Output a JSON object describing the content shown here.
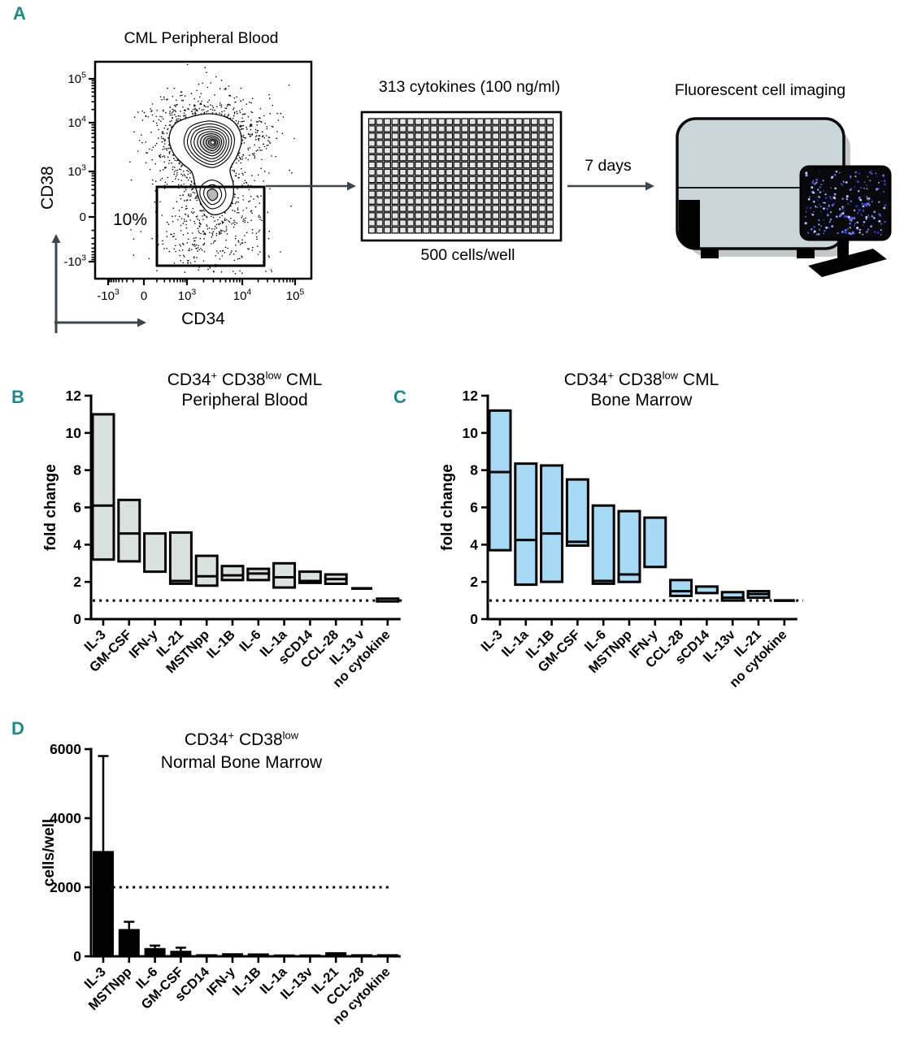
{
  "accent_color": "#1A8A8C",
  "panel_labels": {
    "a": "A",
    "b": "B",
    "c": "C",
    "d": "D"
  },
  "panel_a": {
    "flow_plot": {
      "title": "CML Peripheral Blood",
      "x_axis_label": "CD34",
      "y_axis_label": "CD38",
      "x_ticks": [
        "-10^3",
        "0",
        "10^3",
        "10^4",
        "10^5"
      ],
      "y_ticks": [
        "10^5",
        "10^4",
        "10^3",
        "0",
        "-10^3"
      ],
      "gate_percentage": "10%"
    },
    "well_plate": {
      "title": "313 cytokines (100 ng/ml)",
      "caption": "500 cells/well",
      "rows": 16,
      "cols": 24
    },
    "incubation_label": "7 days",
    "imaging_label": "Fluorescent cell imaging"
  },
  "chart_data": [
    {
      "id": "b",
      "type": "bar",
      "style": "floating-box",
      "title_line1": [
        {
          "text": "CD34"
        },
        {
          "text": "+",
          "sup": true
        },
        {
          "text": " CD38"
        },
        {
          "text": "low",
          "sup": true
        },
        {
          "text": " CML"
        }
      ],
      "title_line2": "Peripheral Blood",
      "xlabel": "",
      "ylabel": "fold change",
      "ylim": [
        0,
        12
      ],
      "yticks": [
        0,
        2,
        4,
        6,
        8,
        10,
        12
      ],
      "baseline": 1,
      "box_fill": "#dae2dd",
      "grid": false,
      "legend": null,
      "categories": [
        "IL-3",
        "GM-CSF",
        "IFN-y",
        "IL-21",
        "MSTNpp",
        "IL-1B",
        "IL-6",
        "IL-1a",
        "sCD14",
        "CCL-28",
        "IL-13 v",
        "no cytokine"
      ],
      "box_min": [
        3.2,
        3.1,
        2.55,
        1.9,
        1.8,
        2.1,
        2.1,
        1.7,
        1.95,
        1.9,
        1.65,
        0.95
      ],
      "box_max": [
        11.0,
        6.4,
        4.6,
        4.65,
        3.4,
        2.85,
        2.7,
        3.0,
        2.55,
        2.4,
        1.65,
        1.1
      ],
      "box_median": [
        6.1,
        4.6,
        null,
        2.05,
        2.3,
        2.35,
        2.45,
        2.25,
        2.05,
        2.15,
        null,
        null
      ]
    },
    {
      "id": "c",
      "type": "bar",
      "style": "floating-box",
      "title_line1": [
        {
          "text": "CD34"
        },
        {
          "text": "+",
          "sup": true
        },
        {
          "text": " CD38"
        },
        {
          "text": "low",
          "sup": true
        },
        {
          "text": " CML"
        }
      ],
      "title_line2": "Bone Marrow",
      "xlabel": "",
      "ylabel": "fold change",
      "ylim": [
        0,
        12
      ],
      "yticks": [
        0,
        2,
        4,
        6,
        8,
        10,
        12
      ],
      "baseline": 1,
      "box_fill": "#a6d9f4",
      "grid": false,
      "legend": null,
      "categories": [
        "IL-3",
        "IL-1a",
        "IL-1B",
        "GM-CSF",
        "IL-6",
        "MSTNpp",
        "IFN-y",
        "CCL-28",
        "sCD14",
        "IL-13v",
        "IL-21",
        "no cytokine"
      ],
      "box_min": [
        3.7,
        1.85,
        2.0,
        3.95,
        1.9,
        2.0,
        2.8,
        1.25,
        1.4,
        1.0,
        1.15,
        0.98
      ],
      "box_max": [
        11.2,
        8.35,
        8.25,
        7.5,
        6.1,
        5.8,
        5.45,
        2.1,
        1.75,
        1.45,
        1.5,
        1.02
      ],
      "box_median": [
        7.9,
        4.25,
        4.6,
        4.15,
        2.05,
        2.4,
        null,
        1.5,
        null,
        1.15,
        1.35,
        null
      ]
    },
    {
      "id": "d",
      "type": "bar",
      "style": "bar-error",
      "title_line1": [
        {
          "text": "CD34"
        },
        {
          "text": "+",
          "sup": true
        },
        {
          "text": " CD38"
        },
        {
          "text": "low",
          "sup": true
        }
      ],
      "title_line2": "Normal Bone Marrow",
      "xlabel": "",
      "ylabel": "cells/well",
      "ylim": [
        0,
        6000
      ],
      "yticks": [
        0,
        2000,
        4000,
        6000
      ],
      "baseline": 2000,
      "bar_fill": "#000000",
      "grid": false,
      "legend": null,
      "categories": [
        "IL-3",
        "MSTNpp",
        "IL-6",
        "GM-CSF",
        "sCD14",
        "IFN-y",
        "IL-1B",
        "IL-1a",
        "IL-13v",
        "IL-21",
        "CCL-28",
        "no cytokine"
      ],
      "values": [
        3050,
        790,
        240,
        160,
        60,
        90,
        85,
        55,
        55,
        120,
        60,
        60
      ],
      "errors": [
        2750,
        210,
        70,
        90,
        0,
        0,
        0,
        0,
        0,
        0,
        0,
        0
      ]
    }
  ]
}
